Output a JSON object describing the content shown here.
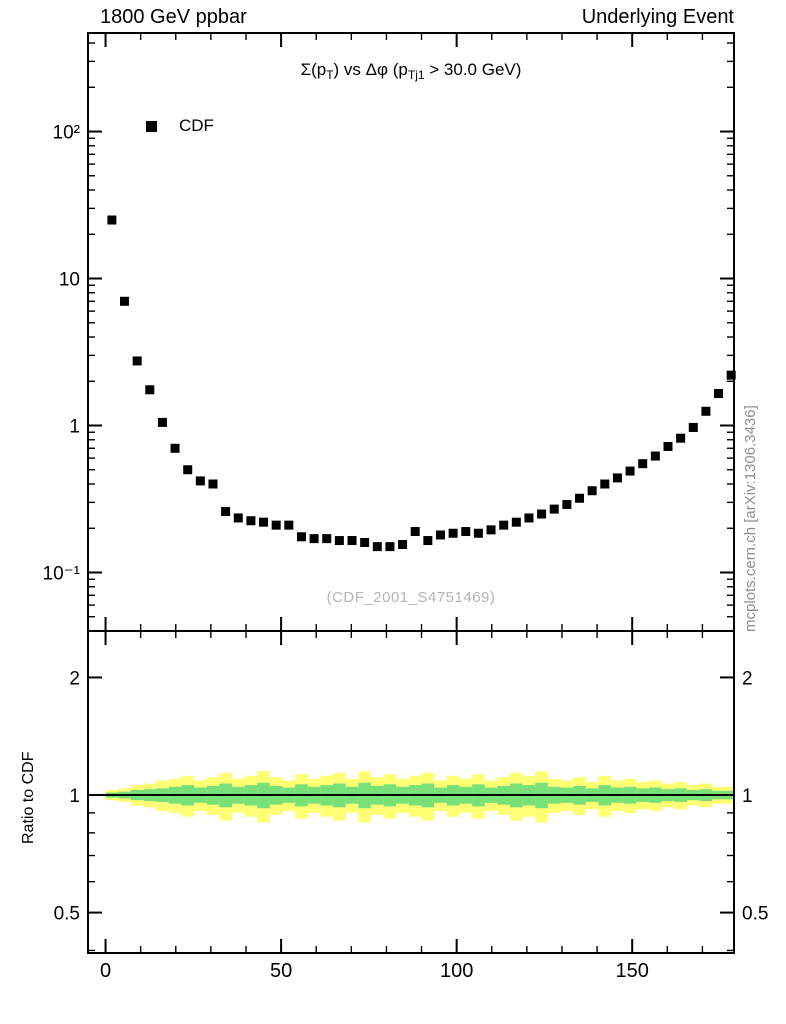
{
  "header": {
    "left": "1800 GeV ppbar",
    "right": "Underlying Event"
  },
  "top_panel": {
    "title_segments": [
      {
        "t": "Σ(p"
      },
      {
        "t": "T",
        "sub": true
      },
      {
        "t": ") vs Δφ (p"
      },
      {
        "t": "Tj1",
        "sub": true
      },
      {
        "t": " > 30.0 GeV)"
      }
    ],
    "watermark": "(CDF_2001_S4751469)"
  },
  "side_credit": "mcplots.cern.ch [arXiv:1306.3436]",
  "chart_data": {
    "type": "scatter",
    "title": "Σ(p_T) vs Δφ (p_Tj1 > 30.0 GeV)",
    "xlabel": "",
    "ylabel": "",
    "ylabel_ratio": "Ratio to CDF",
    "legend_position": "top-left-inside",
    "grid": false,
    "x_axis": {
      "lim": [
        -5,
        179
      ],
      "major_ticks": [
        0,
        50,
        100,
        150
      ],
      "tick_labels": [
        "0",
        "50",
        "100",
        "150"
      ],
      "minor_step": 10
    },
    "y_axis_main": {
      "scale": "log",
      "lim": [
        0.04,
        468
      ],
      "major_ticks": [
        0.1,
        1,
        10,
        100
      ],
      "tick_labels": [
        "10⁻¹",
        "1",
        "10",
        "10²"
      ]
    },
    "y_axis_ratio": {
      "scale": "log",
      "lim": [
        0.394,
        2.63
      ],
      "major_ticks": [
        0.5,
        1,
        2
      ],
      "tick_labels": [
        "0.5",
        "1",
        "2"
      ],
      "minor_ticks": [
        0.4,
        0.6,
        0.7,
        0.8,
        0.9
      ]
    },
    "bin_half_width": 1.8,
    "series": [
      {
        "name": "CDF",
        "marker": "filled-square",
        "color": "#000000"
      }
    ],
    "x": [
      1.8,
      5.4,
      9.0,
      12.6,
      16.2,
      19.8,
      23.4,
      27.0,
      30.6,
      34.2,
      37.8,
      41.4,
      45.0,
      48.6,
      52.2,
      55.8,
      59.4,
      63.0,
      66.6,
      70.2,
      73.8,
      77.4,
      81.0,
      84.6,
      88.2,
      91.8,
      95.4,
      99.0,
      102.6,
      106.2,
      109.8,
      113.4,
      117.0,
      120.6,
      124.2,
      127.8,
      131.4,
      135.0,
      138.6,
      142.2,
      145.8,
      149.4,
      153.0,
      156.6,
      160.2,
      163.8,
      167.4,
      171.0,
      174.6,
      178.2
    ],
    "y": [
      25,
      7,
      2.75,
      1.75,
      1.05,
      0.7,
      0.5,
      0.42,
      0.4,
      0.26,
      0.235,
      0.225,
      0.22,
      0.21,
      0.21,
      0.175,
      0.17,
      0.17,
      0.165,
      0.165,
      0.16,
      0.15,
      0.15,
      0.155,
      0.19,
      0.165,
      0.18,
      0.185,
      0.19,
      0.185,
      0.195,
      0.21,
      0.22,
      0.235,
      0.25,
      0.27,
      0.29,
      0.32,
      0.36,
      0.4,
      0.44,
      0.49,
      0.55,
      0.62,
      0.72,
      0.82,
      0.97,
      1.25,
      1.65,
      2.2
    ],
    "ratio": {
      "center_line": 1,
      "outer_band_frac": [
        0.03,
        0.04,
        0.06,
        0.07,
        0.09,
        0.1,
        0.12,
        0.09,
        0.11,
        0.14,
        0.1,
        0.12,
        0.15,
        0.11,
        0.09,
        0.13,
        0.1,
        0.12,
        0.14,
        0.1,
        0.15,
        0.11,
        0.13,
        0.1,
        0.12,
        0.14,
        0.09,
        0.12,
        0.1,
        0.13,
        0.09,
        0.11,
        0.14,
        0.12,
        0.15,
        0.1,
        0.09,
        0.11,
        0.08,
        0.12,
        0.09,
        0.1,
        0.08,
        0.09,
        0.07,
        0.08,
        0.06,
        0.07,
        0.05,
        0.05
      ],
      "inner_band_frac": [
        0.015,
        0.02,
        0.03,
        0.035,
        0.04,
        0.05,
        0.06,
        0.045,
        0.055,
        0.07,
        0.05,
        0.06,
        0.075,
        0.055,
        0.045,
        0.065,
        0.05,
        0.06,
        0.07,
        0.05,
        0.075,
        0.055,
        0.065,
        0.05,
        0.06,
        0.07,
        0.045,
        0.06,
        0.05,
        0.065,
        0.045,
        0.055,
        0.07,
        0.06,
        0.075,
        0.05,
        0.045,
        0.055,
        0.04,
        0.06,
        0.045,
        0.05,
        0.04,
        0.045,
        0.035,
        0.04,
        0.03,
        0.035,
        0.025,
        0.025
      ],
      "outer_color": "#ffff73",
      "inner_color": "#77e077",
      "line_color": "#000000"
    }
  }
}
